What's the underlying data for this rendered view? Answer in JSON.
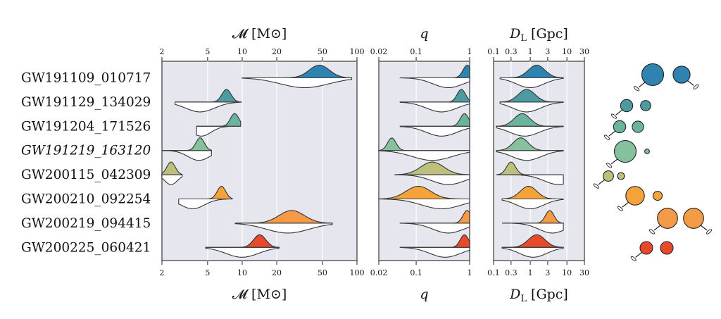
{
  "chart_data": {
    "type": "ridgeline",
    "events": [
      {
        "name": "GW191109_010717",
        "italic": false,
        "color": "#2f83b0",
        "chirp_mass": {
          "median": 47,
          "low": 10,
          "high": 90,
          "sec_median": 35
        },
        "q": {
          "median": 0.9,
          "low": 0.05,
          "high": 1.0,
          "sec_median": 0.4
        },
        "dl": {
          "median": 1.5,
          "low": 0.15,
          "high": 8,
          "sec_median": 1.0
        }
      },
      {
        "name": "GW191129_134029",
        "italic": false,
        "color": "#4e9aa3",
        "chirp_mass": {
          "median": 7.3,
          "low": 2.6,
          "high": 9.8,
          "sec_median": 4.3
        },
        "q": {
          "median": 0.7,
          "low": 0.05,
          "high": 1.0,
          "sec_median": 0.3
        },
        "dl": {
          "median": 0.8,
          "low": 0.15,
          "high": 8,
          "sec_median": 0.8
        }
      },
      {
        "name": "GW191204_171526",
        "italic": false,
        "color": "#6bb39c",
        "chirp_mass": {
          "median": 8.6,
          "low": 4.0,
          "high": 9.7,
          "sec_median": 4.4
        },
        "q": {
          "median": 0.8,
          "low": 0.05,
          "high": 1.0,
          "sec_median": 0.3
        },
        "dl": {
          "median": 0.6,
          "low": 0.12,
          "high": 8,
          "sec_median": 0.7
        }
      },
      {
        "name": "GW191219_163120",
        "italic": true,
        "color": "#86c19e",
        "chirp_mass": {
          "median": 4.3,
          "low": 2.0,
          "high": 5.4,
          "sec_median": 4.2
        },
        "q": {
          "median": 0.035,
          "low": 0.02,
          "high": 1.0,
          "sec_median": 0.2
        },
        "dl": {
          "median": 0.55,
          "low": 0.12,
          "high": 8,
          "sec_median": 0.8
        }
      },
      {
        "name": "GW200115_042309",
        "italic": false,
        "color": "#bdc07c",
        "chirp_mass": {
          "median": 2.4,
          "low": 2.0,
          "high": 3.0,
          "sec_median": 2.4
        },
        "q": {
          "median": 0.2,
          "low": 0.04,
          "high": 1.0,
          "sec_median": 0.4
        },
        "dl": {
          "median": 0.3,
          "low": 0.12,
          "high": 8,
          "sec_median": 6
        }
      },
      {
        "name": "GW200210_092254",
        "italic": false,
        "color": "#f3a339",
        "chirp_mass": {
          "median": 6.6,
          "low": 2.8,
          "high": 8.2,
          "sec_median": 3.7
        },
        "q": {
          "median": 0.11,
          "low": 0.02,
          "high": 1.0,
          "sec_median": 0.3
        },
        "dl": {
          "median": 0.9,
          "low": 0.17,
          "high": 8,
          "sec_median": 1.0
        }
      },
      {
        "name": "GW200219_094415",
        "italic": false,
        "color": "#f59a47",
        "chirp_mass": {
          "median": 27,
          "low": 8.7,
          "high": 61,
          "sec_median": 25
        },
        "q": {
          "median": 0.9,
          "low": 0.05,
          "high": 1.0,
          "sec_median": 0.4
        },
        "dl": {
          "median": 3.4,
          "low": 0.17,
          "high": 8,
          "sec_median": 4
        }
      },
      {
        "name": "GW200225_060421",
        "italic": false,
        "color": "#e64a2b",
        "chirp_mass": {
          "median": 14.2,
          "low": 4.8,
          "high": 21,
          "sec_median": 10
        },
        "q": {
          "median": 0.8,
          "low": 0.05,
          "high": 1.0,
          "sec_median": 0.35
        },
        "dl": {
          "median": 1.5,
          "low": 0.17,
          "high": 8,
          "sec_median": 1.2
        }
      }
    ],
    "axes": [
      {
        "key": "chirp_mass",
        "label": "𝓜 [M⊙]",
        "scale": "log",
        "range": [
          2,
          100
        ],
        "ticks": [
          2,
          5,
          10,
          20,
          50,
          100
        ],
        "tick_labels": [
          "2",
          "5",
          "10",
          "20",
          "50",
          "100"
        ]
      },
      {
        "key": "q",
        "label": "q",
        "scale": "log",
        "range": [
          0.02,
          1
        ],
        "ticks": [
          0.02,
          0.1,
          1
        ],
        "tick_labels": [
          "0.02",
          "0.1",
          "1"
        ]
      },
      {
        "key": "dl",
        "label": "D_L [Gpc]",
        "scale": "log",
        "range": [
          0.1,
          30
        ],
        "ticks": [
          0.1,
          0.3,
          1,
          3,
          10,
          30
        ],
        "tick_labels": [
          "0.1",
          "0.3",
          "1",
          "3",
          "10",
          "30"
        ]
      }
    ],
    "binaries": [
      {
        "m1": 1.0,
        "m2": 0.78
      },
      {
        "m1": 0.56,
        "m2": 0.47
      },
      {
        "m1": 0.56,
        "m2": 0.52
      },
      {
        "m1": 1.0,
        "m2": 0.22
      },
      {
        "m1": 0.48,
        "m2": 0.32
      },
      {
        "m1": 0.85,
        "m2": 0.42
      },
      {
        "m1": 0.92,
        "m2": 0.92
      },
      {
        "m1": 0.58,
        "m2": 0.58
      }
    ]
  }
}
